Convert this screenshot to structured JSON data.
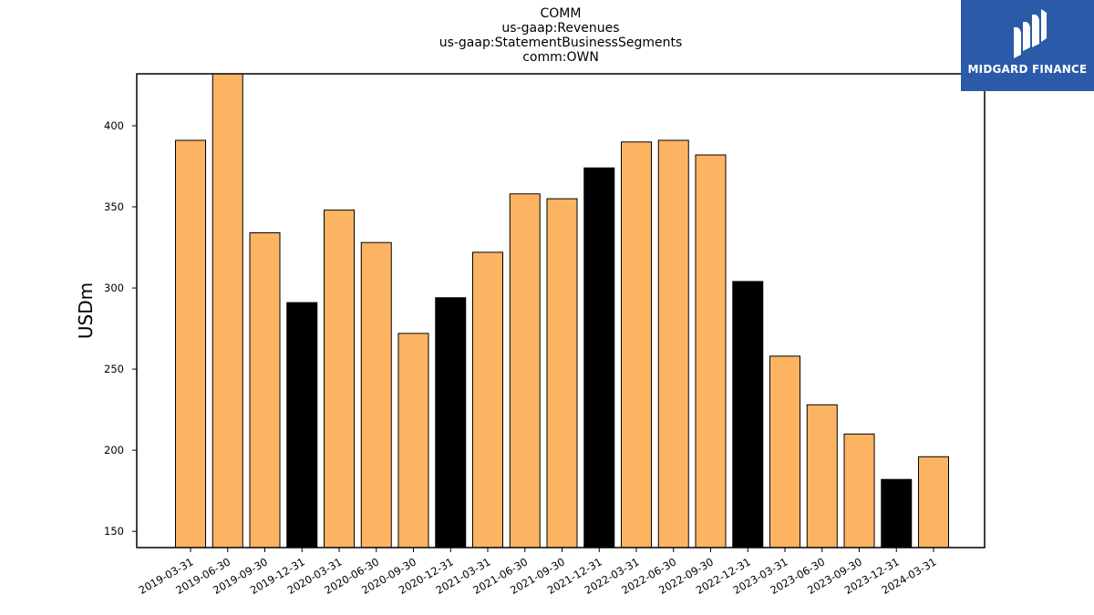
{
  "title_lines": [
    "COMM",
    "us-gaap:Revenues",
    "us-gaap:StatementBusinessSegments",
    "comm:OWN"
  ],
  "brand": {
    "name": "MIDGARD FINANCE",
    "color": "#2b5aa8"
  },
  "chart_data": {
    "type": "bar",
    "ylabel": "USDm",
    "ylim": [
      140,
      432
    ],
    "yticks": [
      150,
      200,
      250,
      300,
      350,
      400
    ],
    "categories": [
      "2019-03-31",
      "2019-06-30",
      "2019-09-30",
      "2019-12-31",
      "2020-03-31",
      "2020-06-30",
      "2020-09-30",
      "2020-12-31",
      "2021-03-31",
      "2021-06-30",
      "2021-09-30",
      "2021-12-31",
      "2022-03-31",
      "2022-06-30",
      "2022-09-30",
      "2022-12-31",
      "2023-03-31",
      "2023-06-30",
      "2023-09-30",
      "2023-12-31",
      "2024-03-31"
    ],
    "values": [
      391,
      433,
      334,
      291,
      348,
      328,
      272,
      294,
      322,
      358,
      355,
      374,
      390,
      391,
      382,
      304,
      258,
      228,
      210,
      182,
      196
    ],
    "bar_colors": [
      "#fdb462",
      "#fdb462",
      "#fdb462",
      "#000000",
      "#fdb462",
      "#fdb462",
      "#fdb462",
      "#000000",
      "#fdb462",
      "#fdb462",
      "#fdb462",
      "#000000",
      "#fdb462",
      "#fdb462",
      "#fdb462",
      "#000000",
      "#fdb462",
      "#fdb462",
      "#fdb462",
      "#000000",
      "#fdb462"
    ],
    "grid": false
  }
}
